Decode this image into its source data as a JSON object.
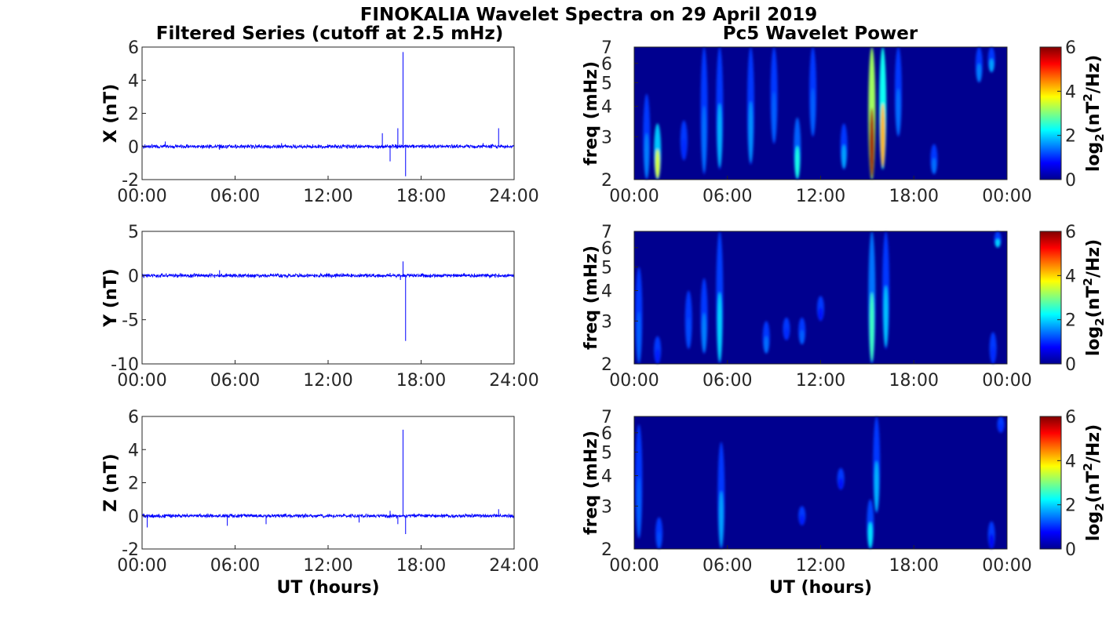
{
  "figure": {
    "title": "FINOKALIA Wavelet Spectra on 29 April 2019",
    "left_title": "Filtered Series (cutoff at 2.5 mHz)",
    "right_title": "Pc5 Wavelet Power"
  },
  "colors": {
    "trace": "#0000ff",
    "axes": "#262626",
    "colormap": "jet",
    "background_power": "#00008f"
  },
  "chart_data": [
    {
      "type": "line",
      "ylabel": "X (nT)",
      "xlabel": "",
      "xlim": [
        "00:00",
        "24:00"
      ],
      "xticks": [
        "00:00",
        "06:00",
        "12:00",
        "18:00",
        "24:00"
      ],
      "ylim": [
        -2,
        6
      ],
      "yticks": [
        "-2",
        "0",
        "2",
        "4",
        "6"
      ],
      "grid": false,
      "series": [
        {
          "x": [
            "00:00",
            "01:30",
            "03:00",
            "05:00",
            "06:00",
            "08:00",
            "09:00",
            "11:00",
            "12:00",
            "14:00",
            "15:30",
            "16:00",
            "16:30",
            "16:50",
            "17:00",
            "17:30",
            "19:00",
            "21:00",
            "22:00",
            "23:00",
            "24:00"
          ],
          "y": [
            0,
            0.3,
            0,
            -0.2,
            0.1,
            0,
            0.2,
            -0.1,
            0,
            0.1,
            0.8,
            -0.9,
            1.1,
            5.7,
            -1.8,
            0.1,
            0,
            0.1,
            0.2,
            1.1,
            0
          ]
        }
      ]
    },
    {
      "type": "heatmap",
      "ylabel": "freq (mHz)",
      "xlim": [
        "00:00",
        "00:00"
      ],
      "xticks": [
        "00:00",
        "06:00",
        "12:00",
        "18:00",
        "00:00"
      ],
      "ylim": [
        2,
        7
      ],
      "yscale": "log",
      "yticks": [
        "2",
        "3",
        "4",
        "5",
        "6",
        "7"
      ],
      "colorbar": {
        "label": "log2(nT2/Hz)",
        "label_base": "log",
        "label_sub": "2",
        "label_open": "(nT",
        "label_sup": "2",
        "label_close": "/Hz)",
        "ticks": [
          "0",
          "2",
          "4",
          "6"
        ],
        "range": [
          0,
          6
        ]
      },
      "bursts": [
        {
          "t": 0.8,
          "f_low": 2.0,
          "f_high": 4.5,
          "peak": 1.5
        },
        {
          "t": 1.5,
          "f_low": 2.0,
          "f_high": 3.4,
          "peak": 3.5
        },
        {
          "t": 3.2,
          "f_low": 2.4,
          "f_high": 3.5,
          "peak": 1.0
        },
        {
          "t": 4.5,
          "f_low": 2.1,
          "f_high": 7.0,
          "peak": 1.4
        },
        {
          "t": 5.5,
          "f_low": 2.2,
          "f_high": 7.0,
          "peak": 1.8
        },
        {
          "t": 7.5,
          "f_low": 2.3,
          "f_high": 7.0,
          "peak": 1.6
        },
        {
          "t": 9.0,
          "f_low": 2.8,
          "f_high": 7.0,
          "peak": 1.3
        },
        {
          "t": 10.5,
          "f_low": 2.0,
          "f_high": 3.6,
          "peak": 2.4
        },
        {
          "t": 11.5,
          "f_low": 3.0,
          "f_high": 7.0,
          "peak": 1.3
        },
        {
          "t": 13.5,
          "f_low": 2.2,
          "f_high": 3.4,
          "peak": 1.7
        },
        {
          "t": 15.3,
          "f_low": 2.0,
          "f_high": 7.0,
          "peak": 5.8
        },
        {
          "t": 16.0,
          "f_low": 2.2,
          "f_high": 7.0,
          "peak": 4.2
        },
        {
          "t": 17.0,
          "f_low": 3.0,
          "f_high": 7.0,
          "peak": 1.4
        },
        {
          "t": 19.3,
          "f_low": 2.1,
          "f_high": 2.8,
          "peak": 1.4
        },
        {
          "t": 22.2,
          "f_low": 5.0,
          "f_high": 7.0,
          "peak": 1.5
        },
        {
          "t": 23.0,
          "f_low": 5.5,
          "f_high": 7.0,
          "peak": 1.7
        }
      ]
    },
    {
      "type": "line",
      "ylabel": "Y (nT)",
      "xlabel": "",
      "xlim": [
        "00:00",
        "24:00"
      ],
      "xticks": [
        "00:00",
        "06:00",
        "12:00",
        "18:00",
        "24:00"
      ],
      "ylim": [
        -10,
        5
      ],
      "yticks": [
        "-10",
        "-5",
        "0",
        "5"
      ],
      "grid": false,
      "series": [
        {
          "x": [
            "00:00",
            "02:00",
            "05:00",
            "06:00",
            "09:00",
            "12:00",
            "14:00",
            "16:00",
            "16:40",
            "16:50",
            "17:00",
            "18:00",
            "21:00",
            "24:00"
          ],
          "y": [
            0,
            0.2,
            0.6,
            0,
            0.1,
            0,
            -0.2,
            0.3,
            -0.5,
            1.6,
            -7.4,
            0.1,
            0,
            0
          ]
        }
      ]
    },
    {
      "type": "heatmap",
      "ylabel": "freq (mHz)",
      "xlim": [
        "00:00",
        "00:00"
      ],
      "xticks": [
        "00:00",
        "06:00",
        "12:00",
        "18:00",
        "00:00"
      ],
      "ylim": [
        2,
        7
      ],
      "yscale": "log",
      "yticks": [
        "2",
        "3",
        "4",
        "5",
        "6",
        "7"
      ],
      "colorbar": {
        "label": "log2(nT2/Hz)",
        "label_base": "log",
        "label_sub": "2",
        "label_open": "(nT",
        "label_sup": "2",
        "label_close": "/Hz)",
        "ticks": [
          "0",
          "2",
          "4",
          "6"
        ],
        "range": [
          0,
          6
        ]
      },
      "bursts": [
        {
          "t": 0.3,
          "f_low": 2.0,
          "f_high": 5.0,
          "peak": 1.3
        },
        {
          "t": 1.5,
          "f_low": 2.0,
          "f_high": 2.6,
          "peak": 0.9
        },
        {
          "t": 3.5,
          "f_low": 2.3,
          "f_high": 4.0,
          "peak": 1.2
        },
        {
          "t": 4.5,
          "f_low": 2.2,
          "f_high": 4.5,
          "peak": 1.5
        },
        {
          "t": 5.5,
          "f_low": 2.0,
          "f_high": 7.0,
          "peak": 2.0
        },
        {
          "t": 8.5,
          "f_low": 2.2,
          "f_high": 3.0,
          "peak": 1.4
        },
        {
          "t": 9.8,
          "f_low": 2.5,
          "f_high": 3.1,
          "peak": 1.0
        },
        {
          "t": 10.8,
          "f_low": 2.4,
          "f_high": 3.1,
          "peak": 1.3
        },
        {
          "t": 12.0,
          "f_low": 3.0,
          "f_high": 3.8,
          "peak": 0.8
        },
        {
          "t": 15.3,
          "f_low": 2.0,
          "f_high": 7.0,
          "peak": 2.6
        },
        {
          "t": 16.2,
          "f_low": 2.3,
          "f_high": 7.0,
          "peak": 1.9
        },
        {
          "t": 23.1,
          "f_low": 2.0,
          "f_high": 2.7,
          "peak": 1.0
        },
        {
          "t": 23.4,
          "f_low": 6.0,
          "f_high": 7.0,
          "peak": 2.0
        }
      ]
    },
    {
      "type": "line",
      "ylabel": "Z (nT)",
      "xlabel": "UT (hours)",
      "xlim": [
        "00:00",
        "24:00"
      ],
      "xticks": [
        "00:00",
        "06:00",
        "12:00",
        "18:00",
        "24:00"
      ],
      "ylim": [
        -2,
        6
      ],
      "yticks": [
        "-2",
        "0",
        "2",
        "4",
        "6"
      ],
      "grid": false,
      "series": [
        {
          "x": [
            "00:00",
            "00:20",
            "02:00",
            "05:30",
            "06:00",
            "08:00",
            "10:00",
            "12:00",
            "14:00",
            "16:00",
            "16:30",
            "16:50",
            "17:00",
            "18:00",
            "20:00",
            "23:00",
            "24:00"
          ],
          "y": [
            0,
            -0.7,
            0.1,
            -0.6,
            0.1,
            -0.5,
            0,
            0,
            -0.4,
            0.3,
            -0.5,
            5.2,
            -1.1,
            0.1,
            0,
            0.4,
            0
          ]
        }
      ]
    },
    {
      "type": "heatmap",
      "ylabel": "freq (mHz)",
      "xlabel": "UT (hours)",
      "xlim": [
        "00:00",
        "00:00"
      ],
      "xticks": [
        "00:00",
        "06:00",
        "12:00",
        "18:00",
        "00:00"
      ],
      "ylim": [
        2,
        7
      ],
      "yscale": "log",
      "yticks": [
        "2",
        "3",
        "4",
        "5",
        "6",
        "7"
      ],
      "colorbar": {
        "label": "log2(nT2/Hz)",
        "label_base": "log",
        "label_sub": "2",
        "label_open": "(nT",
        "label_sup": "2",
        "label_close": "/Hz)",
        "ticks": [
          "0",
          "2",
          "4",
          "6"
        ],
        "range": [
          0,
          6
        ]
      },
      "bursts": [
        {
          "t": 0.3,
          "f_low": 2.2,
          "f_high": 6.5,
          "peak": 1.3
        },
        {
          "t": 1.6,
          "f_low": 2.0,
          "f_high": 2.7,
          "peak": 1.2
        },
        {
          "t": 5.6,
          "f_low": 2.0,
          "f_high": 5.5,
          "peak": 1.7
        },
        {
          "t": 10.8,
          "f_low": 2.5,
          "f_high": 3.0,
          "peak": 0.9
        },
        {
          "t": 13.3,
          "f_low": 3.5,
          "f_high": 4.3,
          "peak": 0.8
        },
        {
          "t": 15.2,
          "f_low": 2.0,
          "f_high": 3.2,
          "peak": 2.1
        },
        {
          "t": 15.6,
          "f_low": 2.8,
          "f_high": 7.0,
          "peak": 1.8
        },
        {
          "t": 23.0,
          "f_low": 2.0,
          "f_high": 2.6,
          "peak": 0.7
        },
        {
          "t": 23.6,
          "f_low": 6.0,
          "f_high": 7.0,
          "peak": 1.0
        }
      ]
    }
  ]
}
